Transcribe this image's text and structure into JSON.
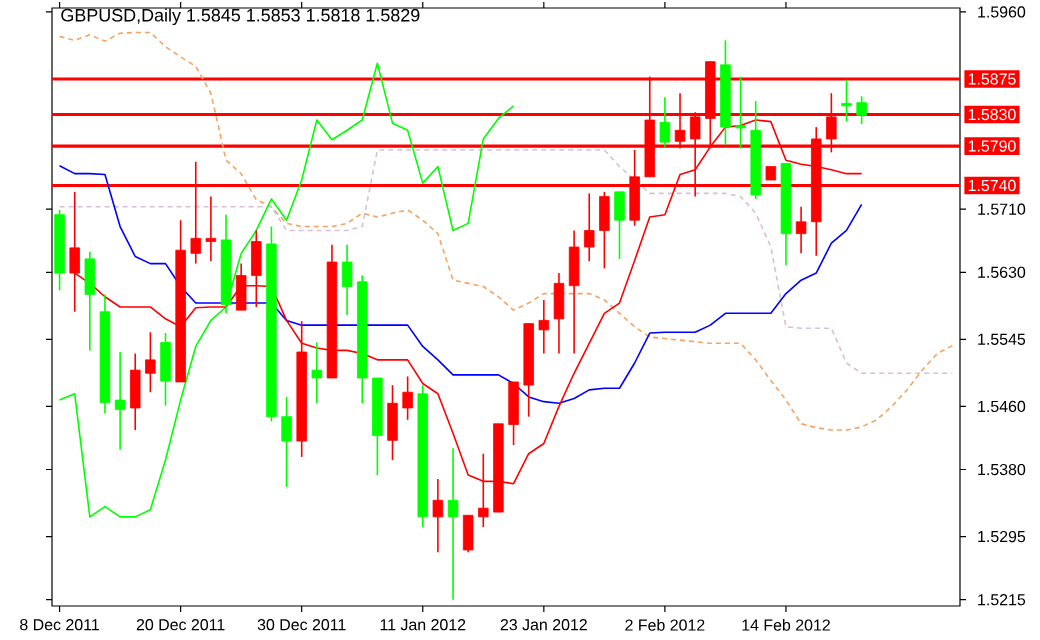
{
  "chart_data": {
    "type": "candlestick",
    "title": "GBPUSD,Daily  1.5845 1.5853 1.5818 1.5829",
    "categories": [
      "8 Dec 2011",
      null,
      null,
      null,
      null,
      null,
      null,
      null,
      "20 Dec 2011",
      null,
      null,
      null,
      null,
      null,
      null,
      null,
      "30 Dec 2011",
      null,
      null,
      null,
      null,
      null,
      null,
      null,
      "11 Jan 2012",
      null,
      null,
      null,
      null,
      null,
      null,
      null,
      "23 Jan 2012",
      null,
      null,
      null,
      null,
      null,
      null,
      null,
      "2 Feb 2012",
      null,
      null,
      null,
      null,
      null,
      null,
      null,
      "14 Feb 2012",
      null,
      null,
      null,
      null,
      null,
      null,
      null,
      null,
      null,
      null,
      null
    ],
    "ohlc": [
      [
        1.5703,
        1.5709,
        1.5607,
        1.5629
      ],
      [
        1.5629,
        1.5732,
        1.558,
        1.5661
      ],
      [
        1.5647,
        1.5656,
        1.5531,
        1.5602
      ],
      [
        1.558,
        1.5602,
        1.5451,
        1.5465
      ],
      [
        1.5468,
        1.5529,
        1.5405,
        1.5456
      ],
      [
        1.5458,
        1.5527,
        1.543,
        1.5506
      ],
      [
        1.5502,
        1.5554,
        1.5478,
        1.5519
      ],
      [
        1.5541,
        1.5553,
        1.5461,
        1.5492
      ],
      [
        1.5491,
        1.5696,
        1.5491,
        1.5658
      ],
      [
        1.5654,
        1.577,
        1.5641,
        1.5673
      ],
      [
        1.5669,
        1.5726,
        1.5644,
        1.5673
      ],
      [
        1.5671,
        1.5703,
        1.5578,
        1.5589
      ],
      [
        1.5582,
        1.5641,
        1.5582,
        1.5626
      ],
      [
        1.5626,
        1.5683,
        1.5586,
        1.5669
      ],
      [
        1.5666,
        1.5688,
        1.5441,
        1.5447
      ],
      [
        1.5447,
        1.5472,
        1.5358,
        1.5416
      ],
      [
        1.5416,
        1.5568,
        1.5396,
        1.5529
      ],
      [
        1.5506,
        1.5541,
        1.5464,
        1.5496
      ],
      [
        1.5496,
        1.5665,
        1.5496,
        1.5643
      ],
      [
        1.5643,
        1.5665,
        1.5576,
        1.5612
      ],
      [
        1.5618,
        1.5626,
        1.5464,
        1.5496
      ],
      [
        1.5496,
        1.5496,
        1.5373,
        1.5423
      ],
      [
        1.5417,
        1.5487,
        1.5392,
        1.5464
      ],
      [
        1.5458,
        1.5498,
        1.5443,
        1.5478
      ],
      [
        1.5476,
        1.5487,
        1.5307,
        1.532
      ],
      [
        1.532,
        1.5368,
        1.5275,
        1.5341
      ],
      [
        1.5341,
        1.5407,
        1.5215,
        1.532
      ],
      [
        1.5278,
        1.5322,
        1.5275,
        1.5322
      ],
      [
        1.532,
        1.54,
        1.5307,
        1.5331
      ],
      [
        1.5326,
        1.5438,
        1.5326,
        1.5438
      ],
      [
        1.5437,
        1.5491,
        1.5411,
        1.5491
      ],
      [
        1.5487,
        1.5565,
        1.5447,
        1.5565
      ],
      [
        1.5557,
        1.5595,
        1.5527,
        1.5569
      ],
      [
        1.5571,
        1.5629,
        1.5527,
        1.5616
      ],
      [
        1.5613,
        1.5683,
        1.5527,
        1.5662
      ],
      [
        1.5662,
        1.573,
        1.5644,
        1.5683
      ],
      [
        1.5683,
        1.5732,
        1.5635,
        1.5726
      ],
      [
        1.5732,
        1.5732,
        1.5647,
        1.5696
      ],
      [
        1.5696,
        1.5785,
        1.5689,
        1.5751
      ],
      [
        1.5751,
        1.5878,
        1.5751,
        1.5823
      ],
      [
        1.582,
        1.5852,
        1.5789,
        1.5795
      ],
      [
        1.5796,
        1.5857,
        1.5787,
        1.581
      ],
      [
        1.5799,
        1.5833,
        1.5726,
        1.5827
      ],
      [
        1.5825,
        1.5897,
        1.5787,
        1.5897
      ],
      [
        1.5893,
        1.5924,
        1.5791,
        1.5814
      ],
      [
        1.5816,
        1.5878,
        1.5787,
        1.5813
      ],
      [
        1.581,
        1.5847,
        1.5723,
        1.5728
      ],
      [
        1.5747,
        1.5764,
        1.5747,
        1.5764
      ],
      [
        1.5768,
        1.5768,
        1.5639,
        1.5679
      ],
      [
        1.5679,
        1.5713,
        1.5654,
        1.5694
      ],
      [
        1.5694,
        1.5814,
        1.5651,
        1.5799
      ],
      [
        1.5799,
        1.5857,
        1.5782,
        1.5827
      ],
      [
        1.5844,
        1.5874,
        1.5821,
        1.5841
      ],
      [
        1.5845,
        1.5853,
        1.5818,
        1.5829
      ],
      null,
      null,
      null,
      null,
      null,
      null
    ],
    "colors": [
      "#00ff00",
      "#ff0000",
      "#00ff00",
      "#00ff00",
      "#00ff00",
      "#ff0000",
      "#ff0000",
      "#00ff00",
      "#ff0000",
      "#ff0000",
      "#ff0000",
      "#00ff00",
      "#ff0000",
      "#ff0000",
      "#00ff00",
      "#00ff00",
      "#ff0000",
      "#00ff00",
      "#ff0000",
      "#00ff00",
      "#00ff00",
      "#00ff00",
      "#ff0000",
      "#ff0000",
      "#00ff00",
      "#ff0000",
      "#00ff00",
      "#ff0000",
      "#ff0000",
      "#ff0000",
      "#ff0000",
      "#ff0000",
      "#ff0000",
      "#ff0000",
      "#ff0000",
      "#ff0000",
      "#ff0000",
      "#00ff00",
      "#ff0000",
      "#ff0000",
      "#00ff00",
      "#ff0000",
      "#ff0000",
      "#ff0000",
      "#00ff00",
      "#00ff00",
      "#00ff00",
      "#ff0000",
      "#00ff00",
      "#ff0000",
      "#ff0000",
      "#ff0000",
      "#00ff00",
      "#00ff00",
      null,
      null,
      null,
      null,
      null,
      null
    ],
    "series": [
      {
        "type": "line",
        "color": "#f4a460",
        "line_style": "dashed",
        "values": [
          1.5929,
          1.5924,
          1.5931,
          1.5923,
          1.5933,
          1.5934,
          1.5934,
          1.5916,
          1.5903,
          1.5891,
          1.5857,
          1.5772,
          1.5755,
          1.5722,
          1.5713,
          1.5692,
          1.5688,
          1.5688,
          1.5688,
          1.5692,
          1.5705,
          1.57,
          1.5705,
          1.5709,
          1.5696,
          1.5679,
          1.562,
          1.5616,
          1.5612,
          1.5599,
          1.5582,
          1.5591,
          1.5603,
          1.5603,
          1.5603,
          1.5603,
          1.5595,
          1.5578,
          1.5561,
          1.5548,
          1.5546,
          1.5544,
          1.5542,
          1.554,
          1.554,
          1.554,
          1.5519,
          1.5493,
          1.5468,
          1.5438,
          1.5433,
          1.543,
          1.543,
          1.5434,
          1.5443,
          1.546,
          1.5481,
          1.5506,
          1.5527,
          1.5537
        ]
      },
      {
        "type": "line",
        "color": "#d8bfd8",
        "line_style": "dashed",
        "values": [
          1.5713,
          1.5713,
          1.5713,
          1.5713,
          1.5713,
          1.5713,
          1.5713,
          1.5713,
          1.5713,
          1.5713,
          1.5713,
          1.5713,
          1.5713,
          1.5713,
          1.5713,
          1.5683,
          1.5683,
          1.5683,
          1.5683,
          1.5683,
          1.5688,
          1.5785,
          1.5785,
          1.5785,
          1.5785,
          1.5785,
          1.5785,
          1.5785,
          1.5785,
          1.5785,
          1.5785,
          1.5785,
          1.5785,
          1.5785,
          1.5785,
          1.5785,
          1.5785,
          1.5764,
          1.5747,
          1.573,
          1.573,
          1.573,
          1.573,
          1.573,
          1.573,
          1.5726,
          1.5705,
          1.5662,
          1.5561,
          1.5559,
          1.5559,
          1.5559,
          1.5515,
          1.5502,
          1.5502,
          1.5502,
          1.5502,
          1.5502,
          1.5502,
          1.5502
        ]
      },
      {
        "type": "line",
        "color": "#00ff00",
        "values": [
          1.5468,
          1.5476,
          1.532,
          1.5333,
          1.532,
          1.532,
          1.5329,
          1.5392,
          1.5468,
          1.5536,
          1.5569,
          1.5586,
          1.5654,
          1.5683,
          1.5723,
          1.5696,
          1.5747,
          1.5823,
          1.5798,
          1.581,
          1.5823,
          1.5895,
          1.5819,
          1.581,
          1.5743,
          1.5764,
          1.5683,
          1.5692,
          1.5799,
          1.5825,
          1.5841,
          null,
          null,
          null,
          null,
          null,
          null,
          null,
          null,
          null,
          null,
          null,
          null,
          null,
          null,
          null,
          null,
          null,
          null,
          null,
          null,
          null,
          null,
          null,
          null,
          null,
          null,
          null,
          null,
          null
        ]
      },
      {
        "type": "line",
        "color": "#0000ff",
        "values": [
          1.5765,
          1.5755,
          1.5755,
          1.5754,
          1.5688,
          1.565,
          1.5641,
          1.5641,
          1.5612,
          1.5591,
          1.5591,
          1.5591,
          1.5591,
          1.5591,
          1.5591,
          1.5569,
          1.5563,
          1.5563,
          1.5563,
          1.5563,
          1.5563,
          1.5563,
          1.5563,
          1.5563,
          1.5536,
          1.5519,
          1.55,
          1.55,
          1.55,
          1.55,
          1.5489,
          1.5472,
          1.5466,
          1.5464,
          1.547,
          1.5481,
          1.5483,
          1.5483,
          1.5515,
          1.5553,
          1.5554,
          1.5554,
          1.5554,
          1.5563,
          1.5578,
          1.5578,
          1.5578,
          1.5578,
          1.5603,
          1.562,
          1.5629,
          1.5667,
          1.5683,
          1.5716,
          null,
          null,
          null,
          null,
          null,
          null
        ]
      },
      {
        "type": "line",
        "color": "#ff0000",
        "values": [
          null,
          1.5629,
          1.5616,
          1.5599,
          1.5586,
          1.5586,
          1.5586,
          1.5571,
          1.5561,
          1.5585,
          1.5586,
          1.5586,
          1.5613,
          1.5613,
          1.5612,
          1.5569,
          1.554,
          1.5534,
          1.5531,
          1.5531,
          1.5527,
          1.5519,
          1.5519,
          1.5519,
          1.5489,
          1.5476,
          1.5426,
          1.5373,
          1.5365,
          1.5365,
          1.5362,
          1.54,
          1.5413,
          1.546,
          1.5502,
          1.554,
          1.5578,
          1.5591,
          1.5645,
          1.57,
          1.5703,
          1.5754,
          1.576,
          1.5789,
          1.5814,
          1.5816,
          1.5823,
          1.5821,
          1.5772,
          1.5767,
          1.5764,
          1.576,
          1.5755,
          1.5755,
          null,
          null,
          null,
          null,
          null,
          null
        ]
      }
    ],
    "ref_lines": [
      {
        "axis": "y",
        "value": 1.5875,
        "label": "1.5875",
        "color": "#ff0000"
      },
      {
        "axis": "y",
        "value": 1.583,
        "label": "1.5830",
        "color": "#ff0000"
      },
      {
        "axis": "y",
        "value": 1.579,
        "label": "1.5790",
        "color": "#ff0000"
      },
      {
        "axis": "y",
        "value": 1.574,
        "label": "1.5740",
        "color": "#ff0000"
      }
    ],
    "ylim": [
      1.5207,
      1.5965
    ],
    "yticks": [
      {
        "value": 1.596,
        "label": "1.5960"
      },
      {
        "value": 1.571,
        "label": "1.5710"
      },
      {
        "value": 1.563,
        "label": "1.5630"
      },
      {
        "value": 1.5545,
        "label": "1.5545"
      },
      {
        "value": 1.546,
        "label": "1.5460"
      },
      {
        "value": 1.538,
        "label": "1.5380"
      },
      {
        "value": 1.5295,
        "label": "1.5295"
      },
      {
        "value": 1.5215,
        "label": "1.5215"
      }
    ]
  }
}
